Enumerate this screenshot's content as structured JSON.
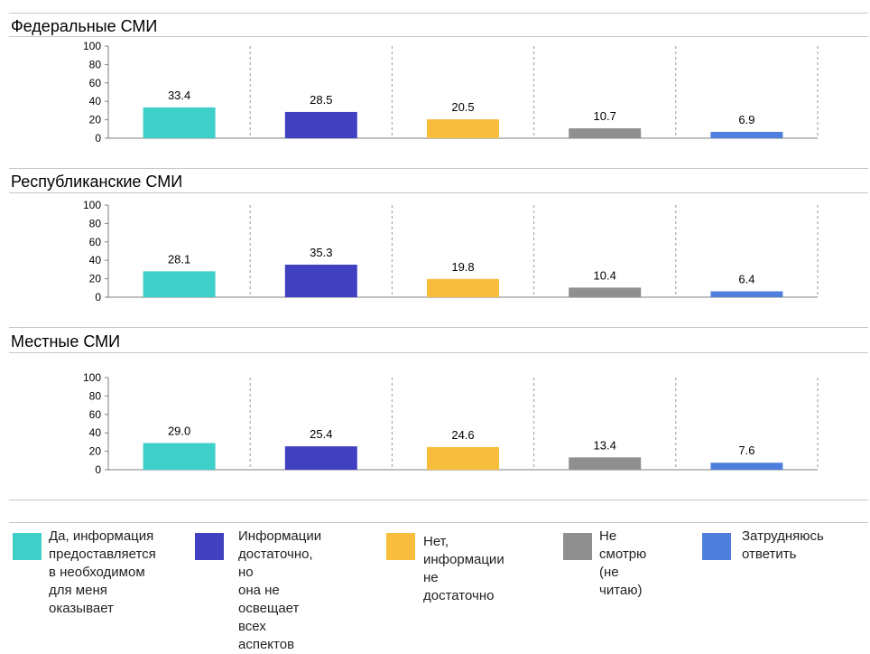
{
  "chart_data": [
    {
      "type": "bar",
      "title": "Федеральные СМИ",
      "categories": [
        "Да, информация предоставляется в необходимом для меня оказывает",
        "Информации достаточно, но она не освещает всех аспектов",
        "Нет, информации не достаточно",
        "Не смотрю (не читаю)",
        "Затрудняюсь ответить"
      ],
      "values": [
        33.4,
        28.5,
        20.5,
        10.7,
        6.9
      ],
      "value_labels": [
        "33.4",
        "28.5",
        "20.5",
        "10.7",
        "6.9"
      ],
      "ylim": [
        0,
        100
      ],
      "yticks": [
        "0",
        "20",
        "40",
        "60",
        "80",
        "100"
      ],
      "grid": false,
      "category_separators": "dashed"
    },
    {
      "type": "bar",
      "title": "Республиканские СМИ",
      "categories": [
        "Да, информация предоставляется в необходимом для меня оказывает",
        "Информации достаточно, но она не освещает всех аспектов",
        "Нет, информации не достаточно",
        "Не смотрю (не читаю)",
        "Затрудняюсь ответить"
      ],
      "values": [
        28.1,
        35.3,
        19.8,
        10.4,
        6.4
      ],
      "value_labels": [
        "28.1",
        "35.3",
        "19.8",
        "10.4",
        "6.4"
      ],
      "ylim": [
        0,
        100
      ],
      "yticks": [
        "0",
        "20",
        "40",
        "60",
        "80",
        "100"
      ],
      "grid": false,
      "category_separators": "dashed"
    },
    {
      "type": "bar",
      "title": "Местные СМИ",
      "categories": [
        "Да, информация предоставляется в необходимом для меня оказывает",
        "Информации достаточно, но она не освещает всех аспектов",
        "Нет, информации не достаточно",
        "Не смотрю (не читаю)",
        "Затрудняюсь ответить"
      ],
      "values": [
        29.0,
        25.4,
        24.6,
        13.4,
        7.6
      ],
      "value_labels": [
        "29.0",
        "25.4",
        "24.6",
        "13.4",
        "7.6"
      ],
      "ylim": [
        0,
        100
      ],
      "yticks": [
        "0",
        "20",
        "40",
        "60",
        "80",
        "100"
      ],
      "grid": false,
      "category_separators": "dashed"
    }
  ],
  "colors": [
    "#3ecfc8",
    "#4040c0",
    "#f8bd3c",
    "#8f8f8f",
    "#4f7fdc"
  ],
  "legend": {
    "placement": "bottom",
    "items": [
      {
        "label": "Да, информация\nпредоставляется\nв необходимом\nдля меня\nоказывает",
        "color": "#3ecfc8"
      },
      {
        "label": "Информации\nдостаточно, но\nона не освещает\nвсех аспектов",
        "color": "#4040c0"
      },
      {
        "label": "Нет, информации\nне достаточно",
        "color": "#f8bd3c"
      },
      {
        "label": "Не смотрю\n(не читаю)",
        "color": "#8f8f8f"
      },
      {
        "label": "Затрудняюсь\nответить",
        "color": "#4f7fdc"
      }
    ]
  }
}
